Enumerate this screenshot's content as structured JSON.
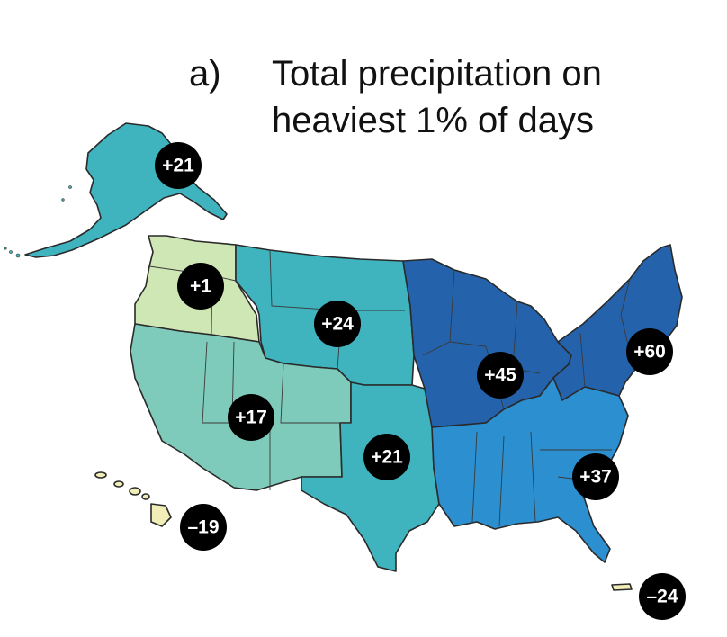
{
  "title": {
    "panel": "a)",
    "line1": "Total precipitation on",
    "line2": "heaviest 1% of days"
  },
  "regions": [
    {
      "name": "Alaska",
      "value": "+21",
      "color": "#3fb3be"
    },
    {
      "name": "Northwest",
      "value": "+1",
      "color": "#cfe6b5"
    },
    {
      "name": "Northern Great Plains",
      "value": "+24",
      "color": "#3fb3be"
    },
    {
      "name": "Southwest",
      "value": "+17",
      "color": "#7fcbbb"
    },
    {
      "name": "Southern Great Plains",
      "value": "+21",
      "color": "#3fb3be"
    },
    {
      "name": "Midwest",
      "value": "+45",
      "color": "#2463ac"
    },
    {
      "name": "Northeast",
      "value": "+60",
      "color": "#2463ac"
    },
    {
      "name": "Southeast",
      "value": "+37",
      "color": "#2b8fd0"
    },
    {
      "name": "Hawaii",
      "value": "–19",
      "color": "#f2eeb8"
    },
    {
      "name": "Puerto Rico",
      "value": "–24",
      "color": "#f2eeb8"
    }
  ]
}
